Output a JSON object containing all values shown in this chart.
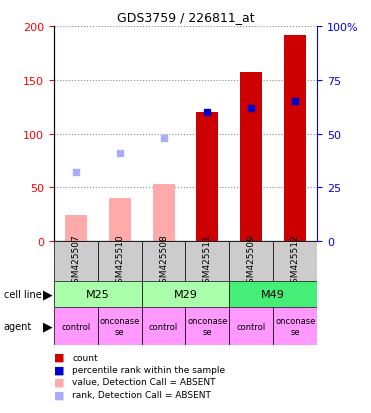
{
  "title": "GDS3759 / 226811_at",
  "samples": [
    "GSM425507",
    "GSM425510",
    "GSM425508",
    "GSM425511",
    "GSM425509",
    "GSM425512"
  ],
  "cell_lines": [
    [
      "M25",
      0,
      2
    ],
    [
      "M29",
      2,
      4
    ],
    [
      "M49",
      4,
      6
    ]
  ],
  "cell_line_colors": [
    "#aaffaa",
    "#aaffaa",
    "#44ee77"
  ],
  "agents": [
    "control",
    "onconase",
    "control",
    "onconase",
    "control",
    "onconase"
  ],
  "count_present": [
    null,
    null,
    null,
    120,
    157,
    192
  ],
  "count_absent": [
    24,
    40,
    53,
    null,
    null,
    null
  ],
  "rank_present": [
    null,
    null,
    null,
    60,
    62,
    65
  ],
  "rank_absent": [
    32,
    41,
    48,
    null,
    null,
    null
  ],
  "ylim_left": [
    0,
    200
  ],
  "ylim_right": [
    0,
    100
  ],
  "count_color": "#cc0000",
  "count_absent_color": "#ffaaaa",
  "rank_color": "#0000cc",
  "rank_absent_color": "#aaaaff",
  "agent_color": "#ff99ff",
  "grid_color": "#888888",
  "sample_label_bg": "#cccccc",
  "legend_items": [
    [
      "#cc0000",
      "count"
    ],
    [
      "#0000cc",
      "percentile rank within the sample"
    ],
    [
      "#ffaaaa",
      "value, Detection Call = ABSENT"
    ],
    [
      "#aaaaff",
      "rank, Detection Call = ABSENT"
    ]
  ]
}
